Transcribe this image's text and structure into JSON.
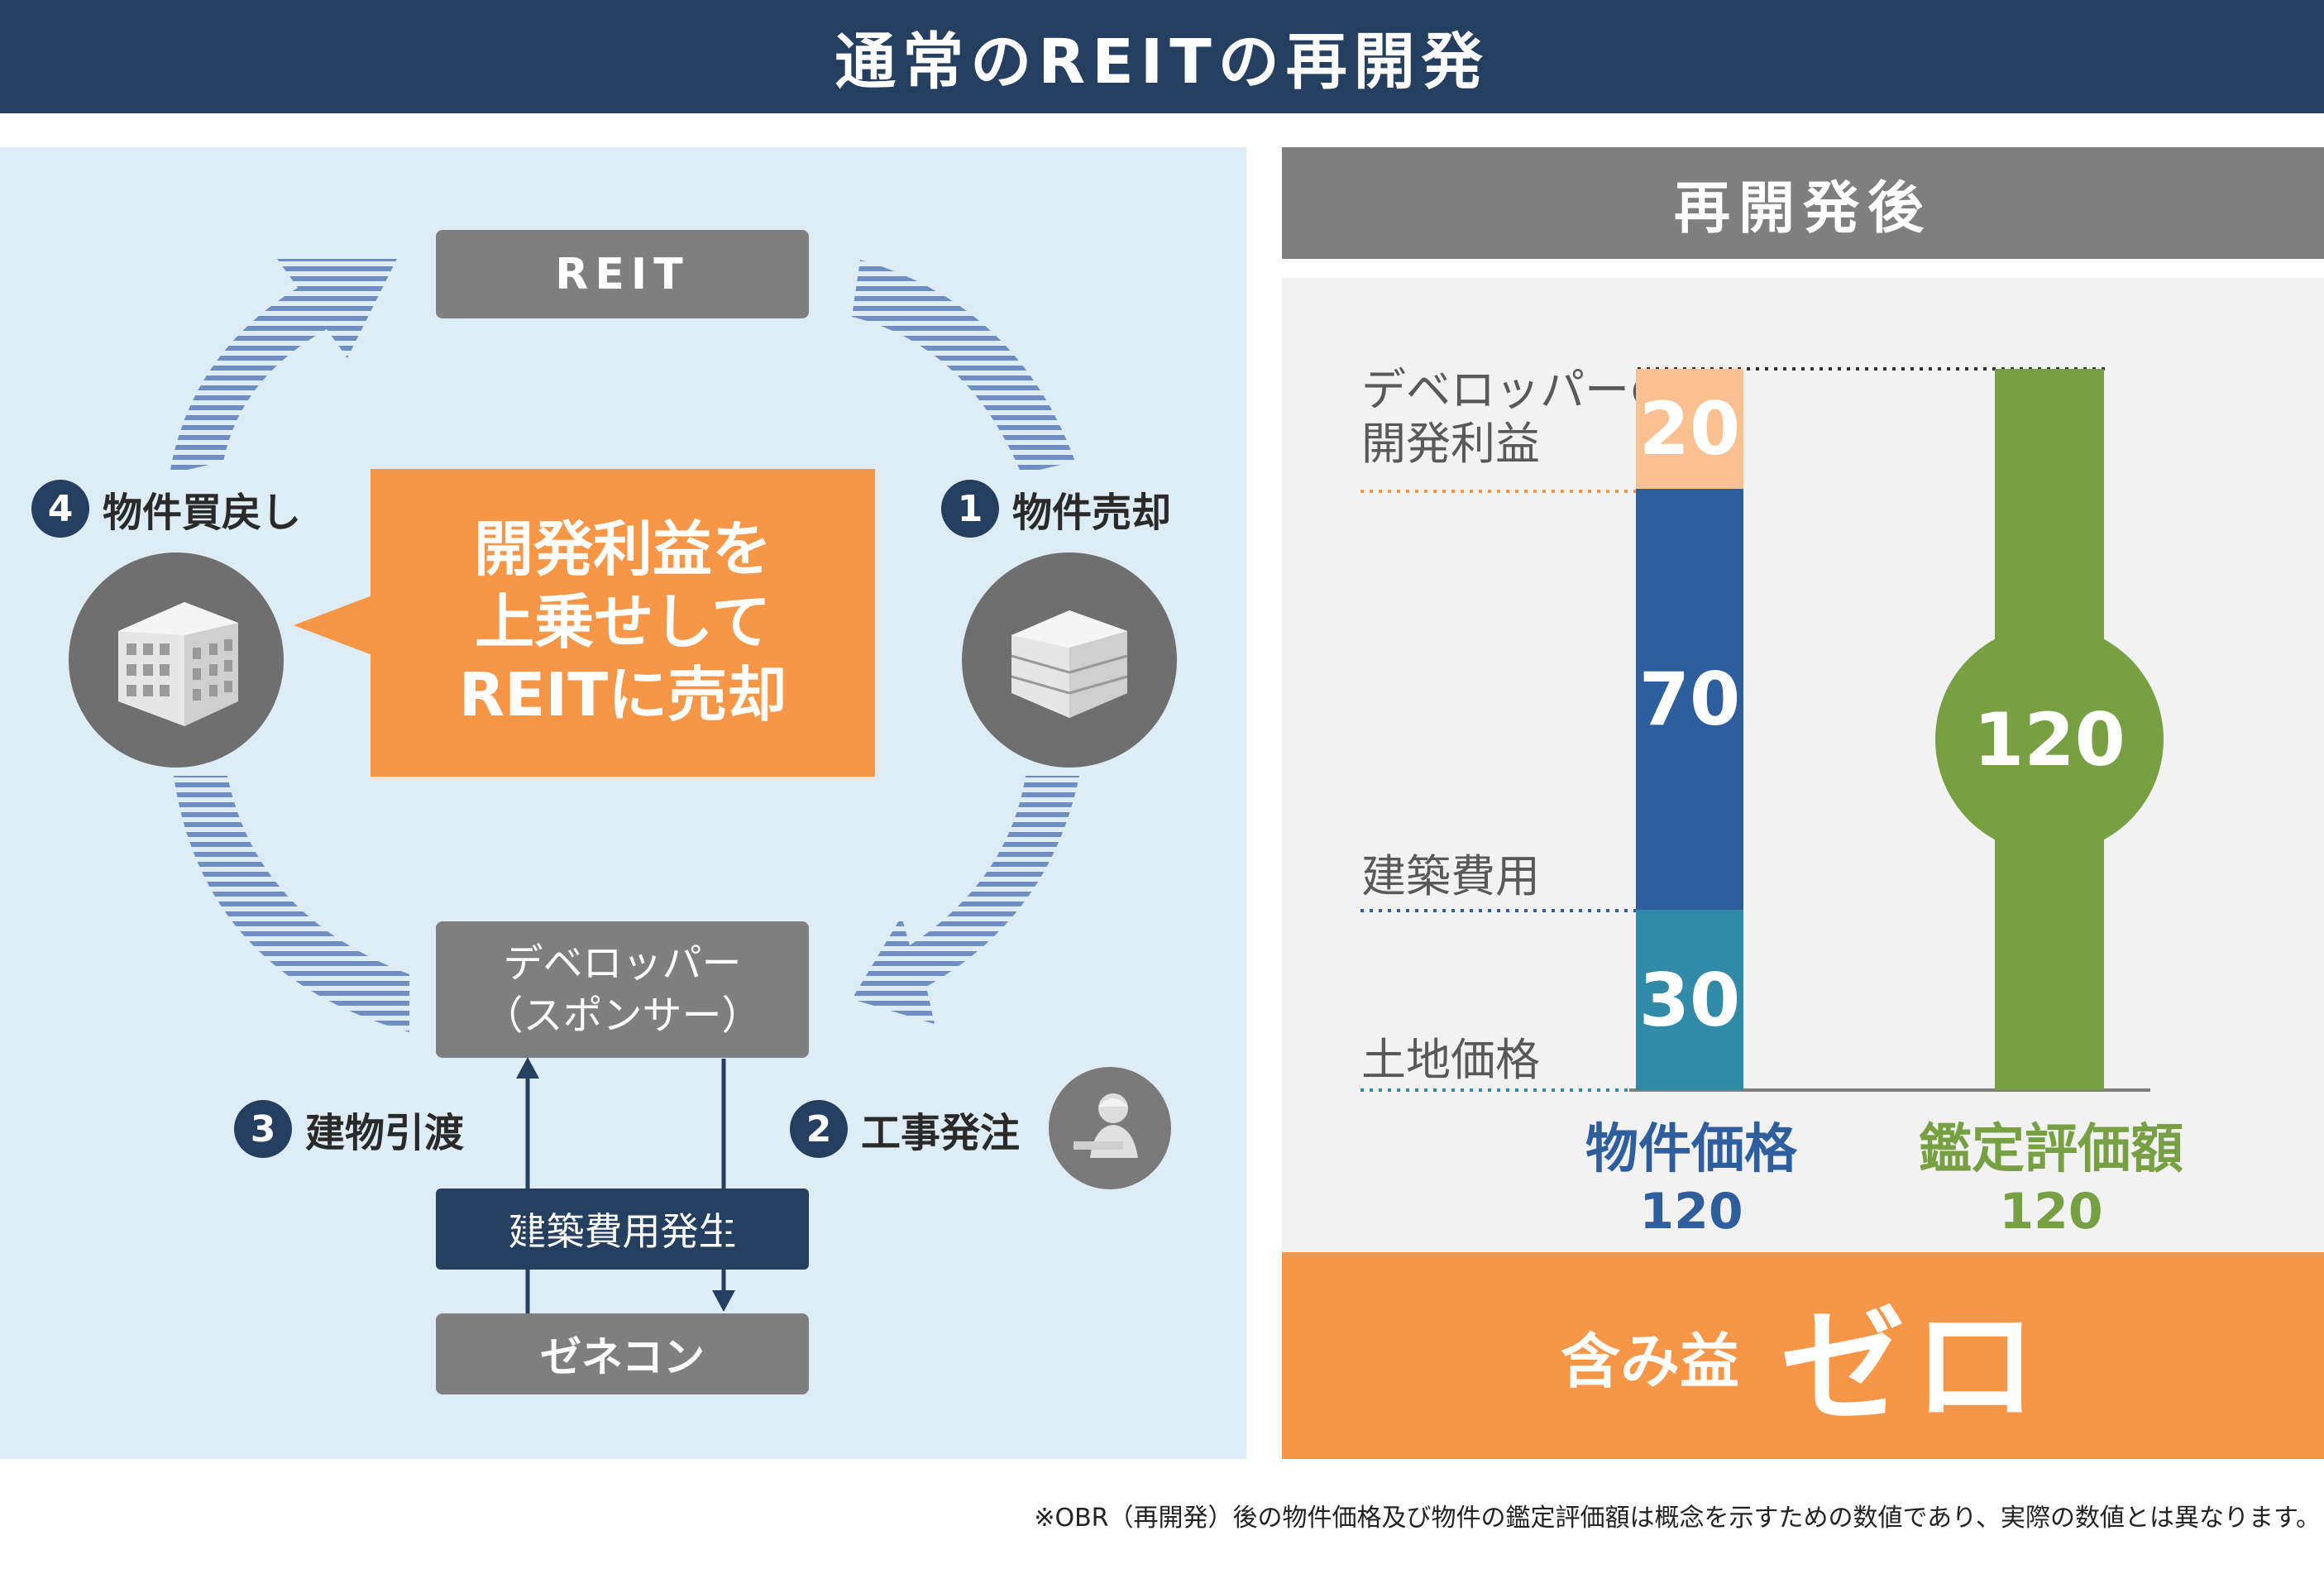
{
  "title": "通常のREITの再開発",
  "cycle": {
    "reit_label": "REIT",
    "developer_label": "デベロッパー\n（スポンサー）",
    "cost_label": "建築費用発生",
    "zenecon_label": "ゼネコン",
    "callout": "開発利益を\n上乗せして\nREITに売却",
    "steps": [
      {
        "num": "1",
        "label": "物件売却"
      },
      {
        "num": "2",
        "label": "工事発注"
      },
      {
        "num": "3",
        "label": "建物引渡"
      },
      {
        "num": "4",
        "label": "物件買戻し"
      }
    ]
  },
  "after": {
    "header": "再開発後",
    "labels": {
      "profit": "デベロッパーの\n開発利益",
      "construction": "建築費用",
      "land": "土地価格"
    },
    "price_bar": {
      "segments": [
        {
          "value": "20",
          "color": "#fac090"
        },
        {
          "value": "70",
          "color": "#2e5e9e"
        },
        {
          "value": "30",
          "color": "#318ba8"
        }
      ],
      "label": "物件価格",
      "total": "120",
      "label_color": "#2e5e9e"
    },
    "appraisal_bar": {
      "value": "120",
      "label": "鑑定評価額",
      "total": "120",
      "color": "#77a043"
    },
    "bottom_text_small": "含み益",
    "bottom_text_big": "ゼロ"
  },
  "chart_data": {
    "type": "bar",
    "categories": [
      "物件価格",
      "鑑定評価額"
    ],
    "series": [
      {
        "name": "土地価格",
        "values": [
          30,
          null
        ]
      },
      {
        "name": "建築費用",
        "values": [
          70,
          null
        ]
      },
      {
        "name": "デベロッパーの開発利益",
        "values": [
          20,
          null
        ]
      },
      {
        "name": "",
        "values": [
          null,
          120
        ]
      }
    ],
    "totals": [
      120,
      120
    ]
  },
  "footnote": "※OBR（再開発）後の物件価格及び物件の鑑定評価額は概念を示すための数値であり、実際の数値とは異なります。"
}
